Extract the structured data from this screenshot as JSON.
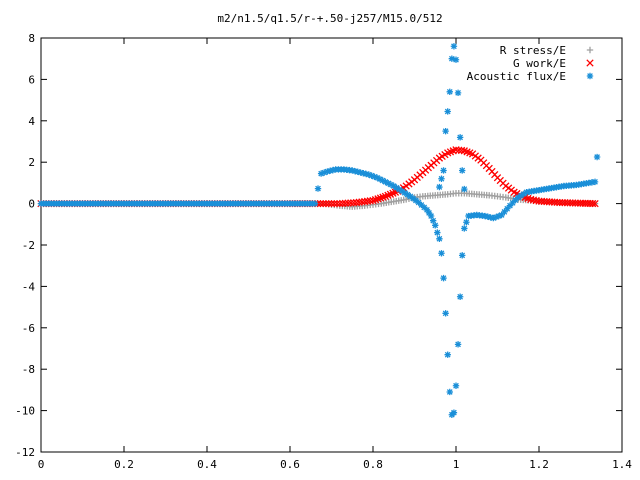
{
  "chart_data": {
    "type": "scatter",
    "title": "m2/n1.5/q1.5/r-+.50-j257/M15.0/512",
    "xlabel": "",
    "ylabel": "",
    "xlim": [
      0,
      1.4
    ],
    "ylim": [
      -12,
      8
    ],
    "x_ticks": [
      "0",
      "0.2",
      "0.4",
      "0.6",
      "0.8",
      "1",
      "1.2",
      "1.4"
    ],
    "y_ticks": [
      "-12",
      "-10",
      "-8",
      "-6",
      "-4",
      "-2",
      "0",
      "2",
      "4",
      "6",
      "8"
    ],
    "legend_position": "top-right",
    "grid": false,
    "series": [
      {
        "name": "R stress/E",
        "marker": "plus",
        "color": "#a0a0a0",
        "points": [
          [
            0.0,
            0.0
          ],
          [
            0.1,
            0.0
          ],
          [
            0.2,
            0.0
          ],
          [
            0.3,
            0.0
          ],
          [
            0.4,
            0.0
          ],
          [
            0.5,
            0.0
          ],
          [
            0.6,
            0.0
          ],
          [
            0.66,
            0.0
          ],
          [
            0.68,
            0.0
          ],
          [
            0.7,
            -0.05
          ],
          [
            0.72,
            -0.1
          ],
          [
            0.75,
            -0.15
          ],
          [
            0.78,
            -0.1
          ],
          [
            0.8,
            -0.05
          ],
          [
            0.82,
            0.0
          ],
          [
            0.85,
            0.1
          ],
          [
            0.88,
            0.2
          ],
          [
            0.9,
            0.3
          ],
          [
            0.92,
            0.35
          ],
          [
            0.95,
            0.4
          ],
          [
            0.98,
            0.45
          ],
          [
            1.0,
            0.5
          ],
          [
            1.02,
            0.5
          ],
          [
            1.05,
            0.45
          ],
          [
            1.08,
            0.4
          ],
          [
            1.1,
            0.35
          ],
          [
            1.12,
            0.3
          ],
          [
            1.15,
            0.2
          ],
          [
            1.18,
            0.15
          ],
          [
            1.2,
            0.1
          ],
          [
            1.25,
            0.05
          ],
          [
            1.3,
            0.02
          ],
          [
            1.335,
            0.0
          ]
        ]
      },
      {
        "name": "G work/E",
        "marker": "cross",
        "color": "#ff0000",
        "points": [
          [
            0.0,
            0.0
          ],
          [
            0.1,
            0.0
          ],
          [
            0.2,
            0.0
          ],
          [
            0.3,
            0.0
          ],
          [
            0.4,
            0.0
          ],
          [
            0.5,
            0.0
          ],
          [
            0.6,
            0.0
          ],
          [
            0.66,
            0.0
          ],
          [
            0.68,
            0.0
          ],
          [
            0.72,
            0.0
          ],
          [
            0.76,
            0.05
          ],
          [
            0.8,
            0.15
          ],
          [
            0.83,
            0.35
          ],
          [
            0.86,
            0.6
          ],
          [
            0.88,
            0.85
          ],
          [
            0.9,
            1.15
          ],
          [
            0.92,
            1.5
          ],
          [
            0.94,
            1.85
          ],
          [
            0.96,
            2.2
          ],
          [
            0.98,
            2.45
          ],
          [
            1.0,
            2.6
          ],
          [
            1.02,
            2.55
          ],
          [
            1.04,
            2.4
          ],
          [
            1.06,
            2.1
          ],
          [
            1.08,
            1.7
          ],
          [
            1.1,
            1.25
          ],
          [
            1.12,
            0.85
          ],
          [
            1.14,
            0.55
          ],
          [
            1.16,
            0.35
          ],
          [
            1.18,
            0.2
          ],
          [
            1.2,
            0.12
          ],
          [
            1.25,
            0.05
          ],
          [
            1.3,
            0.02
          ],
          [
            1.335,
            0.0
          ]
        ]
      },
      {
        "name": "Acoustic flux/E",
        "marker": "star",
        "color": "#1a8fd8",
        "points": [
          [
            0.0,
            0.0
          ],
          [
            0.1,
            0.0
          ],
          [
            0.2,
            0.0
          ],
          [
            0.3,
            0.0
          ],
          [
            0.4,
            0.0
          ],
          [
            0.5,
            0.0
          ],
          [
            0.6,
            0.0
          ],
          [
            0.66,
            0.0
          ],
          [
            0.675,
            1.45
          ],
          [
            0.69,
            1.55
          ],
          [
            0.71,
            1.65
          ],
          [
            0.73,
            1.65
          ],
          [
            0.75,
            1.6
          ],
          [
            0.77,
            1.5
          ],
          [
            0.79,
            1.4
          ],
          [
            0.81,
            1.25
          ],
          [
            0.83,
            1.05
          ],
          [
            0.85,
            0.85
          ],
          [
            0.87,
            0.6
          ],
          [
            0.89,
            0.35
          ],
          [
            0.91,
            0.05
          ],
          [
            0.93,
            -0.3
          ],
          [
            0.94,
            -0.6
          ],
          [
            0.95,
            -1.05
          ],
          [
            0.955,
            -1.4
          ],
          [
            0.96,
            -1.7
          ],
          [
            0.965,
            -2.4
          ],
          [
            0.97,
            -3.6
          ],
          [
            0.975,
            -5.3
          ],
          [
            0.98,
            -7.3
          ],
          [
            0.985,
            -9.1
          ],
          [
            0.99,
            -10.2
          ],
          [
            0.995,
            -10.1
          ],
          [
            1.0,
            -8.8
          ],
          [
            1.005,
            -6.8
          ],
          [
            1.01,
            -4.5
          ],
          [
            1.015,
            -2.5
          ],
          [
            1.02,
            -1.2
          ],
          [
            1.03,
            -0.6
          ],
          [
            1.05,
            -0.55
          ],
          [
            1.07,
            -0.6
          ],
          [
            1.09,
            -0.7
          ],
          [
            1.11,
            -0.55
          ],
          [
            1.13,
            -0.1
          ],
          [
            1.15,
            0.3
          ],
          [
            1.17,
            0.55
          ],
          [
            1.2,
            0.65
          ],
          [
            1.23,
            0.75
          ],
          [
            1.26,
            0.85
          ],
          [
            1.29,
            0.9
          ],
          [
            1.32,
            1.0
          ],
          [
            1.335,
            1.05
          ],
          [
            1.34,
            2.25
          ],
          [
            0.96,
            0.8
          ],
          [
            0.97,
            1.6
          ],
          [
            0.975,
            3.5
          ],
          [
            0.985,
            5.4
          ],
          [
            0.99,
            7.0
          ],
          [
            0.995,
            7.6
          ],
          [
            1.0,
            6.95
          ],
          [
            1.005,
            5.35
          ],
          [
            1.01,
            3.2
          ],
          [
            1.015,
            1.6
          ],
          [
            1.02,
            0.7
          ]
        ]
      }
    ]
  }
}
